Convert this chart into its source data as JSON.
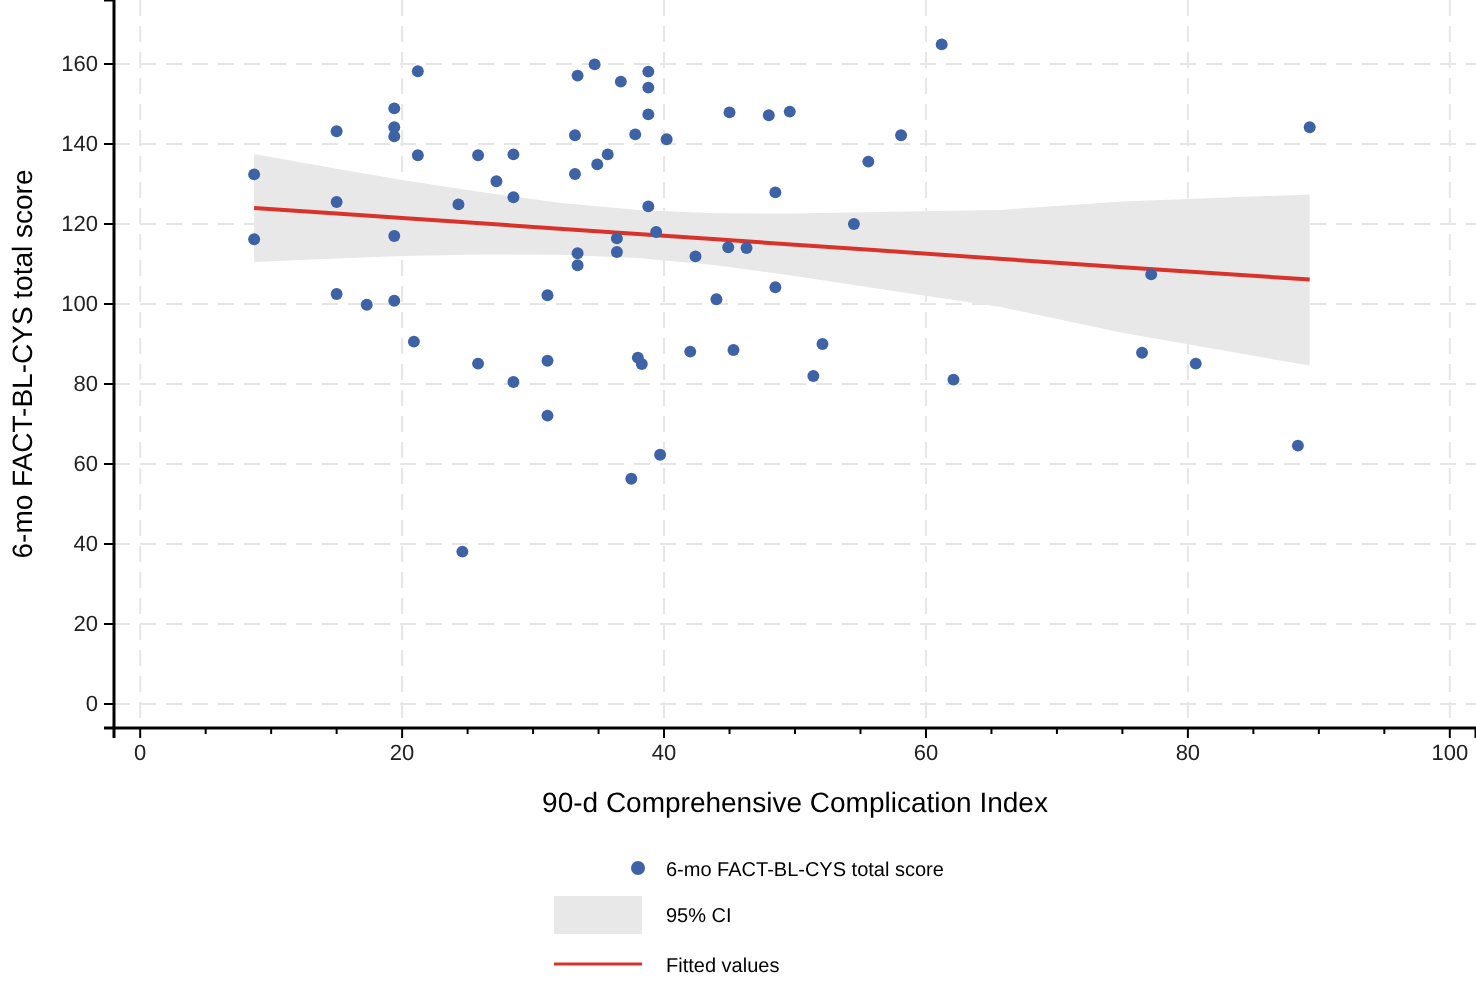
{
  "chart_data": {
    "type": "scatter",
    "xlabel": "90-d Comprehensive Complication Index",
    "ylabel": "6-mo FACT-BL-CYS total score",
    "annotations": [
      "95% CI"
    ],
    "xlim": [
      -2,
      102
    ],
    "ylim": [
      -6,
      176
    ],
    "xticks": [
      0,
      {
        "value": 5,
        "label": null
      },
      {
        "value": 10,
        "label": null
      },
      {
        "value": 15,
        "label": null
      },
      20,
      {
        "value": 25,
        "label": null
      },
      {
        "value": 30,
        "label": null
      },
      {
        "value": 35,
        "label": null
      },
      40,
      {
        "value": 45,
        "label": null
      },
      {
        "value": 50,
        "label": null
      },
      {
        "value": 55,
        "label": null
      },
      60,
      {
        "value": 65,
        "label": null
      },
      {
        "value": 70,
        "label": null
      },
      {
        "value": 75,
        "label": null
      },
      80,
      {
        "value": 85,
        "label": null
      },
      {
        "value": 90,
        "label": null
      },
      {
        "value": 95,
        "label": null
      },
      100
    ],
    "yticks": [
      0,
      20,
      40,
      60,
      80,
      100,
      120,
      140,
      160
    ],
    "grid": true,
    "legend": "bottom",
    "marker": "circle",
    "series": [
      {
        "name": "6-mo FACT-BL-CYS total score",
        "color": "#3d63a6",
        "x": [
          8.7,
          8.7,
          15.0,
          15.0,
          15.0,
          17.3,
          19.4,
          19.4,
          19.4,
          19.4,
          19.4,
          21.2,
          21.2,
          20.9,
          24.3,
          24.6,
          25.8,
          25.8,
          27.2,
          28.5,
          28.5,
          28.5,
          31.1,
          31.1,
          31.1,
          33.2,
          33.2,
          33.4,
          33.4,
          33.4,
          34.7,
          34.9,
          35.7,
          36.4,
          36.4,
          36.7,
          37.5,
          37.8,
          38.0,
          38.3,
          38.8,
          38.8,
          38.8,
          38.8,
          39.4,
          39.7,
          40.2,
          42.0,
          42.4,
          44.0,
          44.9,
          45.0,
          45.3,
          46.3,
          48.0,
          48.5,
          48.5,
          49.6,
          51.4,
          52.1,
          54.5,
          55.6,
          58.1,
          61.2,
          62.1,
          76.5,
          77.2,
          80.6,
          88.4,
          89.3
        ],
        "values": [
          132.4,
          116.2,
          143.2,
          125.5,
          102.5,
          99.8,
          148.9,
          144.2,
          141.9,
          117.0,
          100.8,
          158.2,
          137.2,
          90.6,
          124.9,
          38.1,
          137.2,
          85.1,
          130.7,
          137.4,
          126.7,
          80.5,
          102.2,
          85.8,
          72.1,
          142.2,
          132.5,
          157.1,
          112.7,
          109.7,
          159.9,
          134.9,
          137.4,
          116.4,
          113.0,
          155.6,
          56.3,
          142.4,
          86.6,
          85.0,
          158.1,
          154.1,
          147.4,
          124.4,
          118.0,
          62.3,
          141.2,
          88.1,
          111.9,
          101.2,
          114.2,
          147.9,
          88.5,
          114.0,
          147.2,
          127.9,
          104.2,
          148.1,
          82.0,
          90.0,
          120.0,
          135.6,
          142.2,
          164.9,
          81.1,
          87.8,
          107.4,
          85.1,
          64.6,
          144.2
        ]
      },
      {
        "name": "Fitted values",
        "type": "line",
        "color": "#d9322b",
        "marker": "none",
        "x": [
          8.7,
          15,
          20,
          26,
          32,
          38,
          44,
          50,
          56,
          65.6,
          75,
          89.3
        ],
        "values": [
          124.0,
          122.6,
          121.5,
          120.2,
          118.8,
          117.5,
          116.2,
          114.8,
          113.5,
          111.3,
          109.2,
          106.1
        ],
        "lower": [
          110.5,
          111.4,
          112.0,
          112.4,
          112.3,
          111.5,
          109.7,
          107.0,
          104.0,
          99.3,
          92.8,
          84.6
        ],
        "upper": [
          137.5,
          133.8,
          131.0,
          128.0,
          125.3,
          123.5,
          122.7,
          122.6,
          123.0,
          123.5,
          125.6,
          127.4
        ]
      }
    ]
  }
}
